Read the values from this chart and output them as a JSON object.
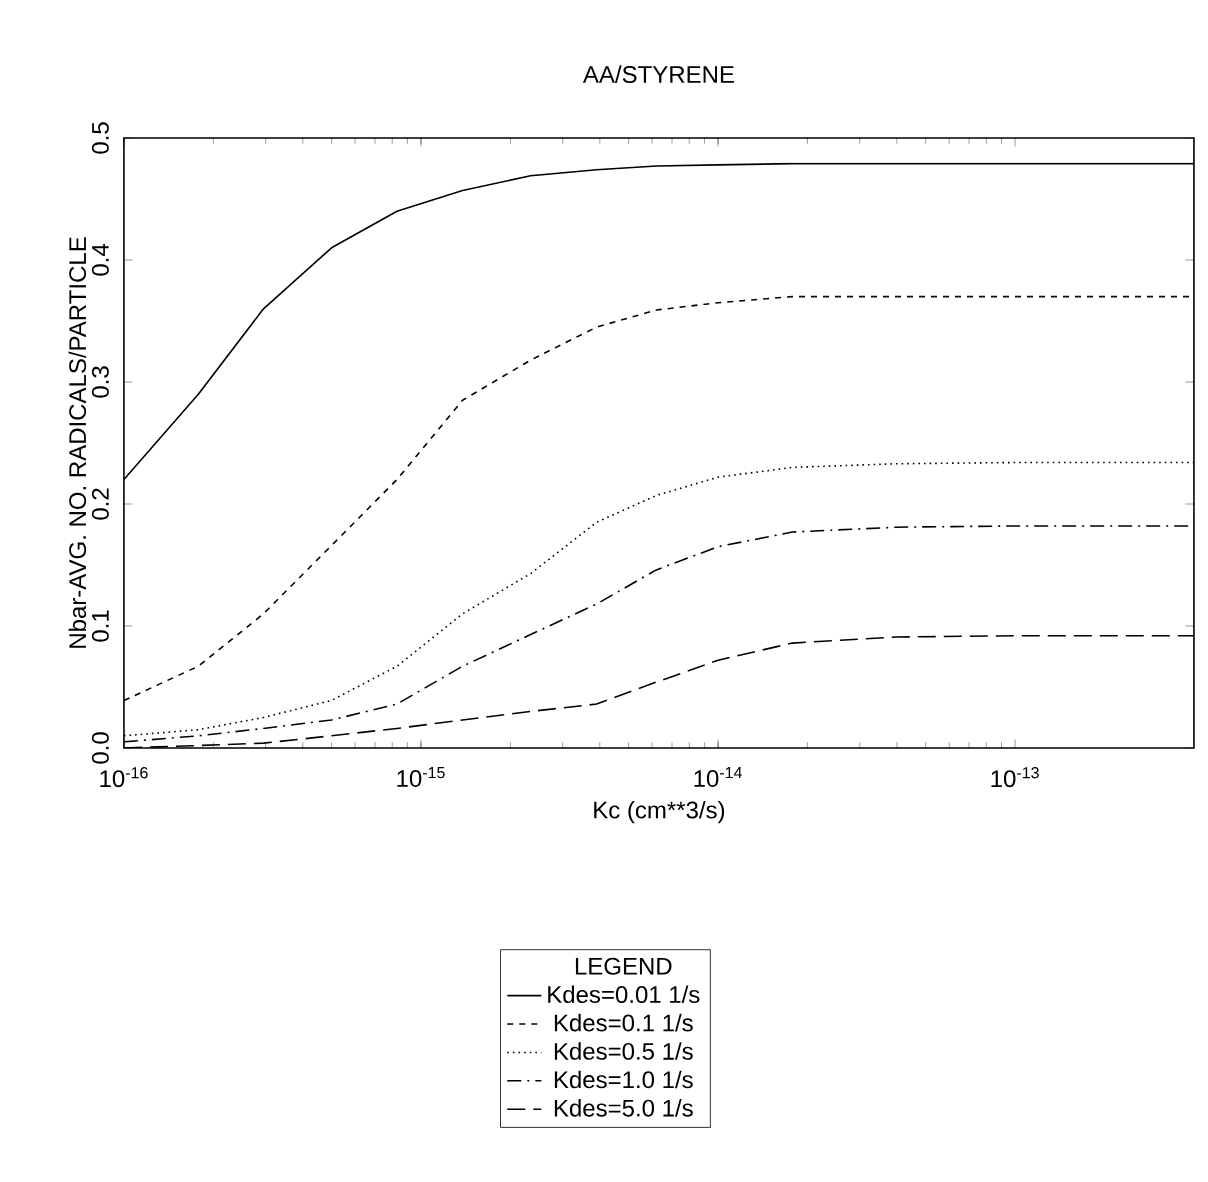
{
  "chart_data": {
    "type": "line",
    "title": "AA/STYRENE",
    "xlabel": "Kc (cm**3/s)",
    "ylabel": "Nbar-AVG. NO. RADICALS/PARTICLE",
    "legend_title": "LEGEND",
    "log": "x",
    "xlim": [
      1e-16,
      4e-13
    ],
    "ylim": [
      0,
      0.5
    ],
    "xticks": [
      {
        "value": 1e-16,
        "label": "10$^{-16}$"
      },
      {
        "value": 1e-15,
        "label": "10$^{-15}$"
      },
      {
        "value": 1e-14,
        "label": "10$^{-14}$"
      },
      {
        "value": 1e-13,
        "label": "10$^{-13}$"
      }
    ],
    "yticks": [
      {
        "value": 0,
        "label": "0.0"
      },
      {
        "value": 0.1,
        "label": "0.1"
      },
      {
        "value": 0.2,
        "label": "0.2"
      },
      {
        "value": 0.3,
        "label": "0.3"
      },
      {
        "value": 0.4,
        "label": "0.4"
      },
      {
        "value": 0.5,
        "label": "0.5"
      }
    ],
    "legend": "bottom",
    "x": [
      1e-16,
      1.78e-16,
      2.95e-16,
      5e-16,
      8.3e-16,
      1.38e-15,
      2.34e-15,
      3.9e-15,
      6.2e-15,
      1e-14,
      1.78e-14,
      4e-14,
      1e-13,
      4e-13
    ],
    "series": [
      {
        "name": "Kdes=0.01 1/s",
        "color": "#000000",
        "line_style": "solid",
        "values": [
          0.22,
          0.29,
          0.36,
          0.41,
          0.44,
          0.457,
          0.469,
          0.474,
          0.477,
          0.478,
          0.479,
          0.479,
          0.479,
          0.479
        ]
      },
      {
        "name": "Kdes=0.1 1/s",
        "color": "#000000",
        "line_style": "dashed",
        "values": [
          0.039,
          0.067,
          0.11,
          0.166,
          0.22,
          0.285,
          0.318,
          0.345,
          0.359,
          0.365,
          0.37,
          0.37,
          0.37,
          0.37
        ]
      },
      {
        "name": "Kdes=0.5 1/s",
        "color": "#000000",
        "line_style": "dotted",
        "values": [
          0.01,
          0.015,
          0.025,
          0.039,
          0.067,
          0.11,
          0.143,
          0.185,
          0.207,
          0.222,
          0.23,
          0.233,
          0.234,
          0.234
        ]
      },
      {
        "name": "Kdes=1.0 1/s",
        "color": "#000000",
        "line_style": "dashdot",
        "values": [
          0.005,
          0.01,
          0.016,
          0.023,
          0.036,
          0.067,
          0.093,
          0.118,
          0.146,
          0.165,
          0.177,
          0.181,
          0.182,
          0.182
        ]
      },
      {
        "name": "Kdes=5.0 1/s",
        "color": "#000000",
        "line_style": "longdash",
        "values": [
          0.0,
          0.002,
          0.004,
          0.01,
          0.016,
          0.023,
          0.03,
          0.036,
          0.054,
          0.072,
          0.086,
          0.091,
          0.092,
          0.092
        ]
      }
    ]
  }
}
